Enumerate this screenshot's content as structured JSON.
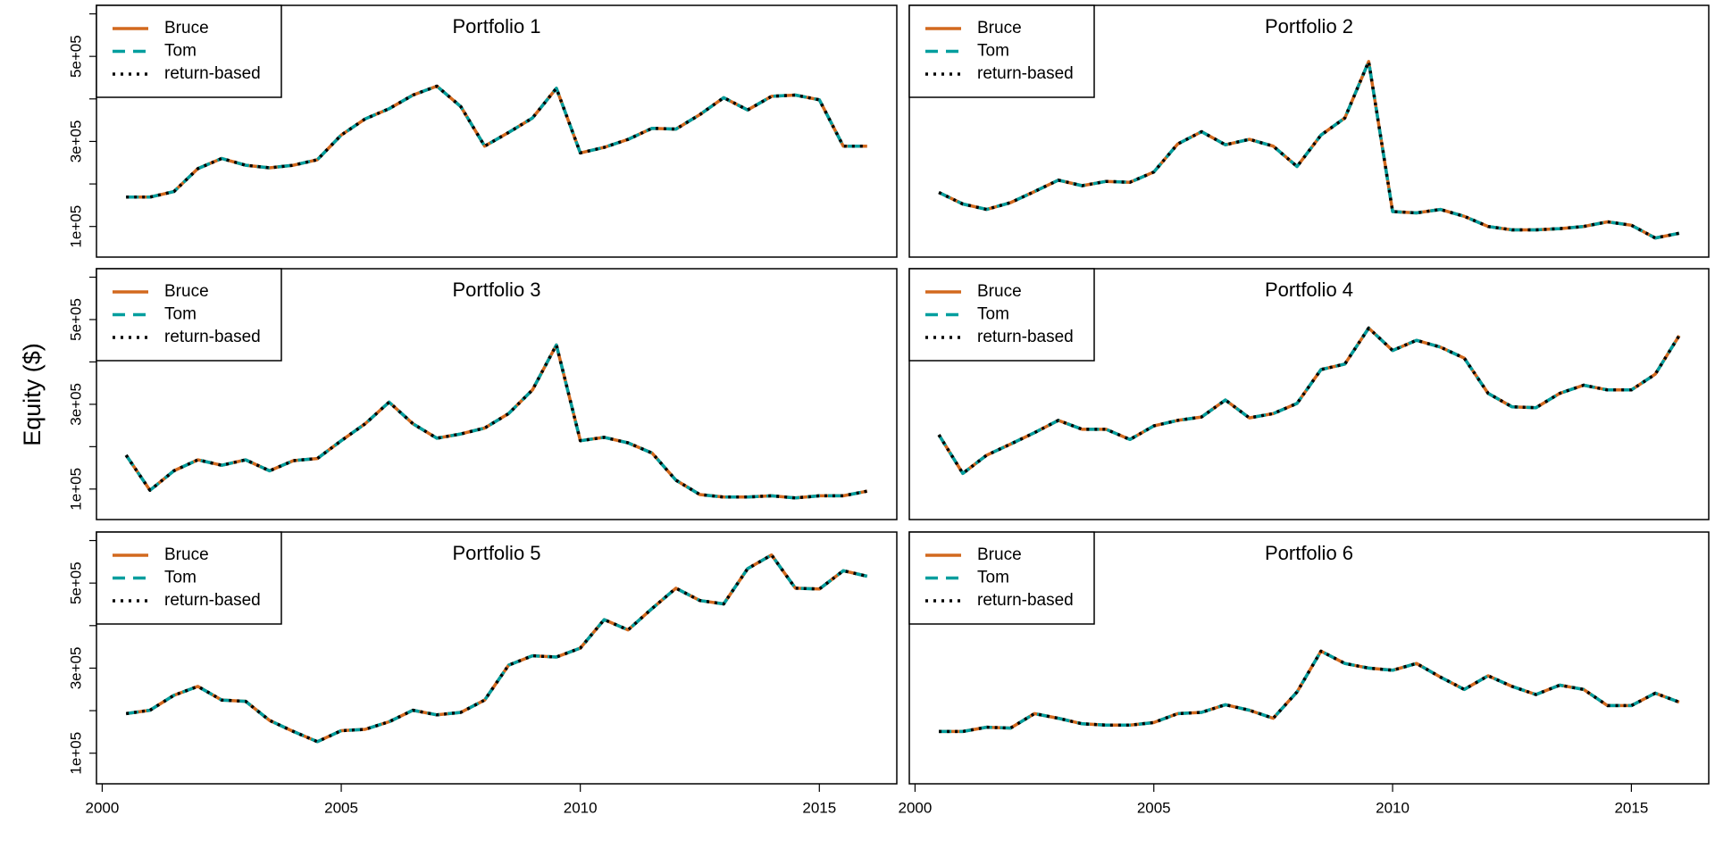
{
  "ylabel": "Equity ($)",
  "chart_data": [
    {
      "type": "line",
      "title": "Portfolio 1",
      "legend": "top-left",
      "x": [
        2000.5,
        2001,
        2001.5,
        2002,
        2002.5,
        2003,
        2003.5,
        2004,
        2004.5,
        2005,
        2005.5,
        2006,
        2006.5,
        2007,
        2007.5,
        2008,
        2008.5,
        2009,
        2009.5,
        2010,
        2010.5,
        2011,
        2011.5,
        2012,
        2012.5,
        2013,
        2013.5,
        2014,
        2014.5,
        2015,
        2015.5,
        2016
      ],
      "xlim": [
        1999.88,
        2016.62
      ],
      "ylim": [
        28000,
        620000
      ],
      "yticks": [
        {
          "value": 100000,
          "label": "1e+05"
        },
        {
          "value": 300000,
          "label": "3e+05"
        },
        {
          "value": 500000,
          "label": "5e+05"
        }
      ],
      "yminor": [
        200000,
        400000,
        600000
      ],
      "series": [
        {
          "name": "Bruce",
          "color": "#d2691e",
          "dash": "solid",
          "values": [
            169000,
            169000,
            182000,
            236000,
            260000,
            244000,
            238000,
            244000,
            257000,
            315000,
            353000,
            377000,
            409000,
            430000,
            382000,
            289000,
            321000,
            355000,
            425000,
            273000,
            286000,
            305000,
            331000,
            329000,
            363000,
            403000,
            374000,
            406000,
            409000,
            398000,
            289000,
            289000
          ]
        },
        {
          "name": "Tom",
          "color": "#009e9e",
          "dash": "dashed",
          "values": [
            169000,
            169000,
            182000,
            236000,
            260000,
            244000,
            238000,
            244000,
            257000,
            315000,
            353000,
            377000,
            409000,
            430000,
            382000,
            289000,
            321000,
            355000,
            425000,
            273000,
            286000,
            305000,
            331000,
            329000,
            363000,
            403000,
            374000,
            406000,
            409000,
            398000,
            289000,
            289000
          ]
        },
        {
          "name": "return-based",
          "color": "#000000",
          "dash": "dotted",
          "values": [
            169000,
            169000,
            182000,
            236000,
            260000,
            244000,
            238000,
            244000,
            257000,
            315000,
            353000,
            377000,
            409000,
            430000,
            382000,
            289000,
            321000,
            355000,
            425000,
            273000,
            286000,
            305000,
            331000,
            329000,
            363000,
            403000,
            374000,
            406000,
            409000,
            398000,
            289000,
            289000
          ]
        }
      ]
    },
    {
      "type": "line",
      "title": "Portfolio 2",
      "legend": "top-left",
      "x": [
        2000.5,
        2001,
        2001.5,
        2002,
        2002.5,
        2003,
        2003.5,
        2004,
        2004.5,
        2005,
        2005.5,
        2006,
        2006.5,
        2007,
        2007.5,
        2008,
        2008.5,
        2009,
        2009.5,
        2010,
        2010.5,
        2011,
        2011.5,
        2012,
        2012.5,
        2013,
        2013.5,
        2014,
        2014.5,
        2015,
        2015.5,
        2016
      ],
      "xlim": [
        1999.88,
        2016.62
      ],
      "ylim": [
        28000,
        620000
      ],
      "series": [
        {
          "name": "Bruce",
          "color": "#d2691e",
          "dash": "solid",
          "values": [
            180000,
            153000,
            140000,
            156000,
            182000,
            209000,
            196000,
            206000,
            204000,
            228000,
            294000,
            323000,
            292000,
            305000,
            289000,
            241000,
            315000,
            355000,
            488000,
            135000,
            132000,
            140000,
            124000,
            100000,
            92000,
            92000,
            95000,
            100000,
            111000,
            103000,
            73000,
            84000
          ]
        },
        {
          "name": "Tom",
          "color": "#009e9e",
          "dash": "dashed",
          "values": [
            180000,
            153000,
            140000,
            156000,
            182000,
            209000,
            196000,
            206000,
            204000,
            228000,
            294000,
            323000,
            292000,
            305000,
            289000,
            241000,
            315000,
            355000,
            488000,
            135000,
            132000,
            140000,
            124000,
            100000,
            92000,
            92000,
            95000,
            100000,
            111000,
            103000,
            73000,
            84000
          ]
        },
        {
          "name": "return-based",
          "color": "#000000",
          "dash": "dotted",
          "values": [
            180000,
            153000,
            140000,
            156000,
            182000,
            209000,
            196000,
            206000,
            204000,
            228000,
            294000,
            323000,
            292000,
            305000,
            289000,
            241000,
            315000,
            355000,
            488000,
            135000,
            132000,
            140000,
            124000,
            100000,
            92000,
            92000,
            95000,
            100000,
            111000,
            103000,
            73000,
            84000
          ]
        }
      ]
    },
    {
      "type": "line",
      "title": "Portfolio 3",
      "legend": "top-left",
      "x": [
        2000.5,
        2001,
        2001.5,
        2002,
        2002.5,
        2003,
        2003.5,
        2004,
        2004.5,
        2005,
        2005.5,
        2006,
        2006.5,
        2007,
        2007.5,
        2008,
        2008.5,
        2009,
        2009.5,
        2010,
        2010.5,
        2011,
        2011.5,
        2012,
        2012.5,
        2013,
        2013.5,
        2014,
        2014.5,
        2015,
        2015.5,
        2016
      ],
      "xlim": [
        1999.88,
        2016.62
      ],
      "ylim": [
        28000,
        620000
      ],
      "yticks": [
        {
          "value": 100000,
          "label": "1e+05"
        },
        {
          "value": 300000,
          "label": "3e+05"
        },
        {
          "value": 500000,
          "label": "5e+05"
        }
      ],
      "yminor": [
        200000,
        400000,
        600000
      ],
      "series": [
        {
          "name": "Bruce",
          "color": "#d2691e",
          "dash": "solid",
          "values": [
            180000,
            97000,
            143000,
            169000,
            156000,
            169000,
            143000,
            167000,
            172000,
            214000,
            254000,
            305000,
            254000,
            220000,
            230000,
            244000,
            278000,
            334000,
            440000,
            214000,
            222000,
            209000,
            185000,
            121000,
            87000,
            81000,
            81000,
            84000,
            79000,
            84000,
            84000,
            95000
          ]
        },
        {
          "name": "Tom",
          "color": "#009e9e",
          "dash": "dashed",
          "values": [
            180000,
            97000,
            143000,
            169000,
            156000,
            169000,
            143000,
            167000,
            172000,
            214000,
            254000,
            305000,
            254000,
            220000,
            230000,
            244000,
            278000,
            334000,
            440000,
            214000,
            222000,
            209000,
            185000,
            121000,
            87000,
            81000,
            81000,
            84000,
            79000,
            84000,
            84000,
            95000
          ]
        },
        {
          "name": "return-based",
          "color": "#000000",
          "dash": "dotted",
          "values": [
            180000,
            97000,
            143000,
            169000,
            156000,
            169000,
            143000,
            167000,
            172000,
            214000,
            254000,
            305000,
            254000,
            220000,
            230000,
            244000,
            278000,
            334000,
            440000,
            214000,
            222000,
            209000,
            185000,
            121000,
            87000,
            81000,
            81000,
            84000,
            79000,
            84000,
            84000,
            95000
          ]
        }
      ]
    },
    {
      "type": "line",
      "title": "Portfolio 4",
      "legend": "top-left",
      "x": [
        2000.5,
        2001,
        2001.5,
        2002,
        2002.5,
        2003,
        2003.5,
        2004,
        2004.5,
        2005,
        2005.5,
        2006,
        2006.5,
        2007,
        2007.5,
        2008,
        2008.5,
        2009,
        2009.5,
        2010,
        2010.5,
        2011,
        2011.5,
        2012,
        2012.5,
        2013,
        2013.5,
        2014,
        2014.5,
        2015,
        2015.5,
        2016
      ],
      "xlim": [
        1999.88,
        2016.62
      ],
      "ylim": [
        28000,
        620000
      ],
      "series": [
        {
          "name": "Bruce",
          "color": "#d2691e",
          "dash": "solid",
          "values": [
            228000,
            137000,
            180000,
            206000,
            233000,
            262000,
            241000,
            241000,
            217000,
            249000,
            262000,
            270000,
            310000,
            268000,
            278000,
            302000,
            382000,
            395000,
            480000,
            427000,
            451000,
            435000,
            409000,
            326000,
            294000,
            292000,
            326000,
            345000,
            334000,
            334000,
            371000,
            462000
          ]
        },
        {
          "name": "Tom",
          "color": "#009e9e",
          "dash": "dashed",
          "values": [
            228000,
            137000,
            180000,
            206000,
            233000,
            262000,
            241000,
            241000,
            217000,
            249000,
            262000,
            270000,
            310000,
            268000,
            278000,
            302000,
            382000,
            395000,
            480000,
            427000,
            451000,
            435000,
            409000,
            326000,
            294000,
            292000,
            326000,
            345000,
            334000,
            334000,
            371000,
            462000
          ]
        },
        {
          "name": "return-based",
          "color": "#000000",
          "dash": "dotted",
          "values": [
            228000,
            137000,
            180000,
            206000,
            233000,
            262000,
            241000,
            241000,
            217000,
            249000,
            262000,
            270000,
            310000,
            268000,
            278000,
            302000,
            382000,
            395000,
            480000,
            427000,
            451000,
            435000,
            409000,
            326000,
            294000,
            292000,
            326000,
            345000,
            334000,
            334000,
            371000,
            462000
          ]
        }
      ]
    },
    {
      "type": "line",
      "title": "Portfolio 5",
      "legend": "top-left",
      "x": [
        2000.5,
        2001,
        2001.5,
        2002,
        2002.5,
        2003,
        2003.5,
        2004,
        2004.5,
        2005,
        2005.5,
        2006,
        2006.5,
        2007,
        2007.5,
        2008,
        2008.5,
        2009,
        2009.5,
        2010,
        2010.5,
        2011,
        2011.5,
        2012,
        2012.5,
        2013,
        2013.5,
        2014,
        2014.5,
        2015,
        2015.5,
        2016
      ],
      "xlim": [
        1999.88,
        2016.62
      ],
      "ylim": [
        28000,
        620000
      ],
      "xticks": [
        2000,
        2005,
        2010,
        2015
      ],
      "yticks": [
        {
          "value": 100000,
          "label": "1e+05"
        },
        {
          "value": 300000,
          "label": "3e+05"
        },
        {
          "value": 500000,
          "label": "5e+05"
        }
      ],
      "yminor": [
        200000,
        400000,
        600000
      ],
      "series": [
        {
          "name": "Bruce",
          "color": "#d2691e",
          "dash": "solid",
          "values": [
            193000,
            201000,
            236000,
            257000,
            225000,
            222000,
            177000,
            151000,
            127000,
            153000,
            156000,
            174000,
            201000,
            190000,
            196000,
            225000,
            307000,
            329000,
            326000,
            347000,
            414000,
            390000,
            440000,
            488000,
            459000,
            451000,
            534000,
            566000,
            488000,
            486000,
            529000,
            516000
          ]
        },
        {
          "name": "Tom",
          "color": "#009e9e",
          "dash": "dashed",
          "values": [
            193000,
            201000,
            236000,
            257000,
            225000,
            222000,
            177000,
            151000,
            127000,
            153000,
            156000,
            174000,
            201000,
            190000,
            196000,
            225000,
            307000,
            329000,
            326000,
            347000,
            414000,
            390000,
            440000,
            488000,
            459000,
            451000,
            534000,
            566000,
            488000,
            486000,
            529000,
            516000
          ]
        },
        {
          "name": "return-based",
          "color": "#000000",
          "dash": "dotted",
          "values": [
            193000,
            201000,
            236000,
            257000,
            225000,
            222000,
            177000,
            151000,
            127000,
            153000,
            156000,
            174000,
            201000,
            190000,
            196000,
            225000,
            307000,
            329000,
            326000,
            347000,
            414000,
            390000,
            440000,
            488000,
            459000,
            451000,
            534000,
            566000,
            488000,
            486000,
            529000,
            516000
          ]
        }
      ]
    },
    {
      "type": "line",
      "title": "Portfolio 6",
      "legend": "top-left",
      "x": [
        2000.5,
        2001,
        2001.5,
        2002,
        2002.5,
        2003,
        2003.5,
        2004,
        2004.5,
        2005,
        2005.5,
        2006,
        2006.5,
        2007,
        2007.5,
        2008,
        2008.5,
        2009,
        2009.5,
        2010,
        2010.5,
        2011,
        2011.5,
        2012,
        2012.5,
        2013,
        2013.5,
        2014,
        2014.5,
        2015,
        2015.5,
        2016
      ],
      "xlim": [
        1999.88,
        2016.62
      ],
      "ylim": [
        28000,
        620000
      ],
      "xticks": [
        2000,
        2005,
        2010,
        2015
      ],
      "series": [
        {
          "name": "Bruce",
          "color": "#d2691e",
          "dash": "solid",
          "values": [
            151000,
            151000,
            161000,
            159000,
            193000,
            182000,
            169000,
            166000,
            166000,
            172000,
            193000,
            196000,
            214000,
            201000,
            182000,
            244000,
            340000,
            311000,
            300000,
            295000,
            311000,
            279000,
            250000,
            282000,
            257000,
            238000,
            260000,
            250000,
            212000,
            212000,
            241000,
            220000
          ]
        },
        {
          "name": "Tom",
          "color": "#009e9e",
          "dash": "dashed",
          "values": [
            151000,
            151000,
            161000,
            159000,
            193000,
            182000,
            169000,
            166000,
            166000,
            172000,
            193000,
            196000,
            214000,
            201000,
            182000,
            244000,
            340000,
            311000,
            300000,
            295000,
            311000,
            279000,
            250000,
            282000,
            257000,
            238000,
            260000,
            250000,
            212000,
            212000,
            241000,
            220000
          ]
        },
        {
          "name": "return-based",
          "color": "#000000",
          "dash": "dotted",
          "values": [
            151000,
            151000,
            161000,
            159000,
            193000,
            182000,
            169000,
            166000,
            166000,
            172000,
            193000,
            196000,
            214000,
            201000,
            182000,
            244000,
            340000,
            311000,
            300000,
            295000,
            311000,
            279000,
            250000,
            282000,
            257000,
            238000,
            260000,
            250000,
            212000,
            212000,
            241000,
            220000
          ]
        }
      ]
    }
  ]
}
